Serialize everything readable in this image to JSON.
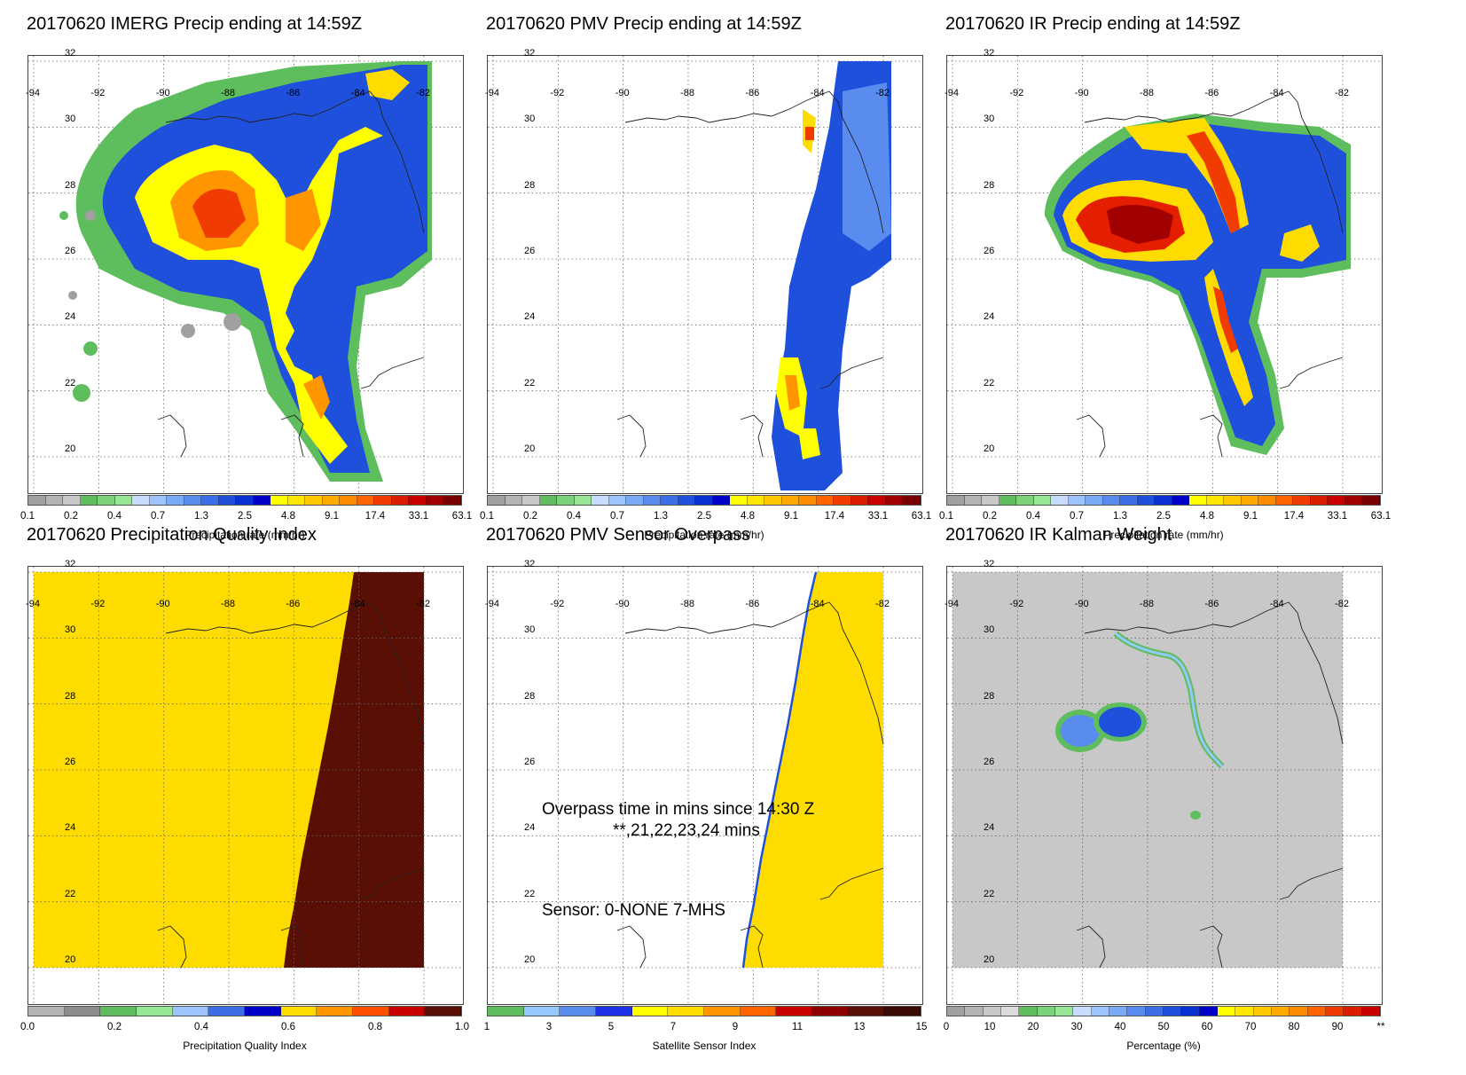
{
  "panels": [
    {
      "title": "20170620 IMERG Precip ending at 14:59Z",
      "lon_labels": [
        "-94",
        "-92",
        "-90",
        "-88",
        "-86",
        "-84",
        "-82"
      ],
      "lat_labels": [
        "32",
        "30",
        "28",
        "26",
        "24",
        "22",
        "20"
      ],
      "colorbar_ticks": [
        "0.1",
        "0.2",
        "0.4",
        "0.7",
        "1.3",
        "2.5",
        "4.8",
        "9.1",
        "17.4",
        "33.1",
        "63.1"
      ],
      "colorbar_label": "Precipitation rate (mm/hr)"
    },
    {
      "title": "20170620 PMV Precip ending at 14:59Z",
      "lon_labels": [
        "-94",
        "-92",
        "-90",
        "-88",
        "-86",
        "-84",
        "-82"
      ],
      "lat_labels": [
        "32",
        "30",
        "28",
        "26",
        "24",
        "22",
        "20"
      ],
      "colorbar_ticks": [
        "0.1",
        "0.2",
        "0.4",
        "0.7",
        "1.3",
        "2.5",
        "4.8",
        "9.1",
        "17.4",
        "33.1",
        "63.1"
      ],
      "colorbar_label": "Precipitation rate (mm/hr)"
    },
    {
      "title": "20170620 IR Precip ending at 14:59Z",
      "lon_labels": [
        "-94",
        "-92",
        "-90",
        "-88",
        "-86",
        "-84",
        "-82"
      ],
      "lat_labels": [
        "32",
        "30",
        "28",
        "26",
        "24",
        "22",
        "20"
      ],
      "colorbar_ticks": [
        "0.1",
        "0.2",
        "0.4",
        "0.7",
        "1.3",
        "2.5",
        "4.8",
        "9.1",
        "17.4",
        "33.1",
        "63.1"
      ],
      "colorbar_label": "Precipitation rate (mm/hr)"
    },
    {
      "title": "20170620 Precipitation Quality Index",
      "lon_labels": [
        "-94",
        "-92",
        "-90",
        "-88",
        "-86",
        "-84",
        "-82"
      ],
      "lat_labels": [
        "32",
        "30",
        "28",
        "26",
        "24",
        "22",
        "20"
      ],
      "colorbar_ticks": [
        "0.0",
        "0.2",
        "0.4",
        "0.6",
        "0.8",
        "1.0"
      ],
      "colorbar_label": "Precipitation Quality Index"
    },
    {
      "title": "20170620 PMV Sensor Overpass",
      "lon_labels": [
        "-94",
        "-92",
        "-90",
        "-88",
        "-86",
        "-84",
        "-82"
      ],
      "lat_labels": [
        "32",
        "30",
        "28",
        "26",
        "24",
        "22",
        "20"
      ],
      "colorbar_ticks": [
        "1",
        "3",
        "5",
        "7",
        "9",
        "11",
        "13",
        "15"
      ],
      "colorbar_label": "Satellite Sensor Index",
      "annotation_line1": "Overpass time in mins since 14:30 Z",
      "annotation_line2": "**,21,22,23,24 mins",
      "annotation_line3": "Sensor:   0-NONE  7-MHS"
    },
    {
      "title": "20170620 IR Kalman Weight",
      "lon_labels": [
        "-94",
        "-92",
        "-90",
        "-88",
        "-86",
        "-84",
        "-82"
      ],
      "lat_labels": [
        "32",
        "30",
        "28",
        "26",
        "24",
        "22",
        "20"
      ],
      "colorbar_ticks": [
        "0",
        "10",
        "20",
        "30",
        "40",
        "50",
        "60",
        "70",
        "80",
        "90",
        "**"
      ],
      "colorbar_label": "Percentage (%)"
    }
  ],
  "colors": {
    "precip_scale": [
      "#a0a0a0",
      "#b4b4b4",
      "#c8c8c8",
      "#5ebe5e",
      "#7ad27a",
      "#96e696",
      "#c8dcff",
      "#9cc4ff",
      "#78aaf5",
      "#5a8cf0",
      "#3c6ee6",
      "#1e50dc",
      "#0a32d2",
      "#0000c8",
      "#ffff00",
      "#ffe600",
      "#ffc800",
      "#ffaa00",
      "#ff8c00",
      "#ff6400",
      "#f03c00",
      "#dc1e00",
      "#c80000",
      "#a00000",
      "#780000"
    ],
    "quality_scale": [
      "#b4b4b4",
      "#8c8c8c",
      "#5ebe5e",
      "#96e696",
      "#9cc4ff",
      "#3c6ee6",
      "#0000c8",
      "#ffdc00",
      "#ff9600",
      "#ff5000",
      "#c80000",
      "#5a0f05"
    ],
    "sensor_scale": [
      "#5ebe5e",
      "#96c8ff",
      "#5a8cf0",
      "#1e32e6",
      "#ffff00",
      "#ffdc00",
      "#ff9600",
      "#ff6400",
      "#c80000",
      "#8c0000",
      "#5a0f05",
      "#3c0a05"
    ],
    "kalman_scale": [
      "#a0a0a0",
      "#b4b4b4",
      "#c8c8c8",
      "#dcdcdc",
      "#5ebe5e",
      "#7ad27a",
      "#96e696",
      "#c8dcff",
      "#9cc4ff",
      "#78aaf5",
      "#5a8cf0",
      "#3c6ee6",
      "#1e50dc",
      "#0a32d2",
      "#0000c8",
      "#ffff00",
      "#ffe600",
      "#ffc800",
      "#ffaa00",
      "#ff8c00",
      "#ff6400",
      "#f03c00",
      "#dc1e00",
      "#c80000"
    ]
  }
}
